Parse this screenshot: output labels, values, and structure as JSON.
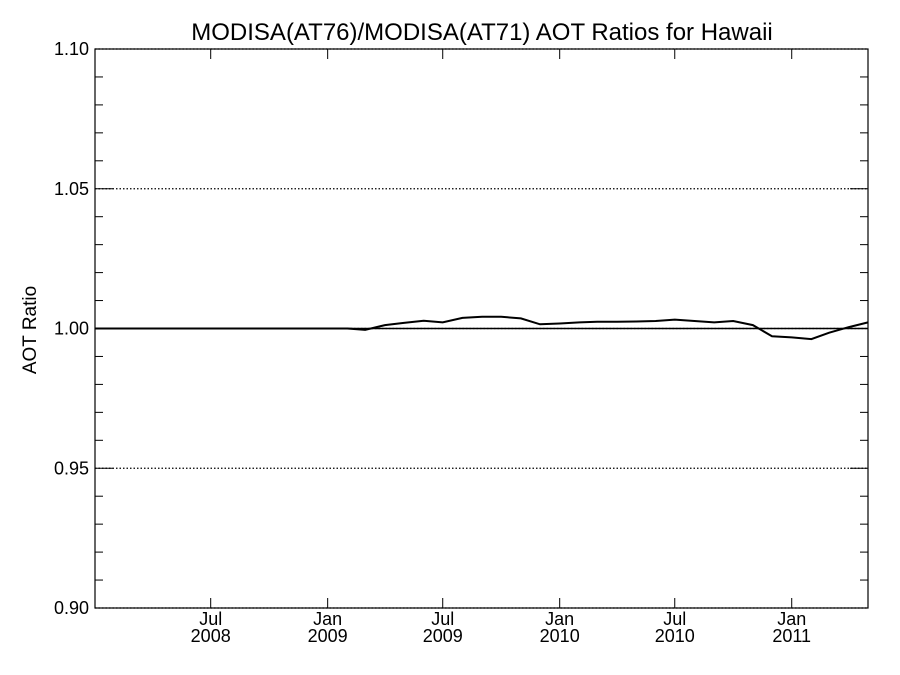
{
  "chart_data": {
    "type": "line",
    "title": "MODISA(AT76)/MODISA(AT71)  AOT Ratios for Hawaii",
    "xlabel": "",
    "ylabel": "AOT Ratio",
    "ylim": [
      0.9,
      1.1
    ],
    "xlim": [
      "2008-01-01",
      "2011-05-01"
    ],
    "grid": "dotted horizontal at major y ticks",
    "yticks": [
      "0.90",
      "0.95",
      "1.00",
      "1.05",
      "1.10"
    ],
    "xticks": [
      {
        "date": "2008-07-01",
        "month": "Jul",
        "year": "2008"
      },
      {
        "date": "2009-01-01",
        "month": "Jan",
        "year": "2009"
      },
      {
        "date": "2009-07-01",
        "month": "Jul",
        "year": "2009"
      },
      {
        "date": "2010-01-01",
        "month": "Jan",
        "year": "2010"
      },
      {
        "date": "2010-07-01",
        "month": "Jul",
        "year": "2010"
      },
      {
        "date": "2011-01-01",
        "month": "Jan",
        "year": "2011"
      }
    ],
    "reference_line": 1.0,
    "series": [
      {
        "x": [
          "2008-01-01",
          "2008-02-01",
          "2008-03-01",
          "2008-04-01",
          "2008-05-01",
          "2008-06-01",
          "2008-07-01",
          "2008-08-01",
          "2008-09-01",
          "2008-10-01",
          "2008-11-01",
          "2008-12-01",
          "2009-01-01",
          "2009-02-01",
          "2009-03-01",
          "2009-04-01",
          "2009-05-01",
          "2009-06-01",
          "2009-07-01",
          "2009-08-01",
          "2009-09-01",
          "2009-10-01",
          "2009-11-01",
          "2009-12-01",
          "2010-01-01",
          "2010-02-01",
          "2010-03-01",
          "2010-04-01",
          "2010-05-01",
          "2010-06-01",
          "2010-07-01",
          "2010-08-01",
          "2010-09-01",
          "2010-10-01",
          "2010-11-01",
          "2010-12-01",
          "2011-01-01",
          "2011-02-01",
          "2011-03-01",
          "2011-04-01",
          "2011-05-01"
        ],
        "values": [
          1.0,
          1.0,
          1.0,
          1.0,
          1.0,
          1.0,
          1.0,
          1.0,
          1.0,
          1.0,
          1.0,
          1.0,
          1.0,
          1.0,
          0.9995,
          1.0012,
          1.002,
          1.0028,
          1.0022,
          1.0038,
          1.0042,
          1.0042,
          1.0036,
          1.0015,
          1.0018,
          1.0022,
          1.0024,
          1.0024,
          1.0025,
          1.0027,
          1.0032,
          1.0027,
          1.0022,
          1.0027,
          1.0012,
          0.9972,
          0.9968,
          0.9962,
          0.9985,
          1.0005,
          1.0022
        ]
      }
    ]
  }
}
